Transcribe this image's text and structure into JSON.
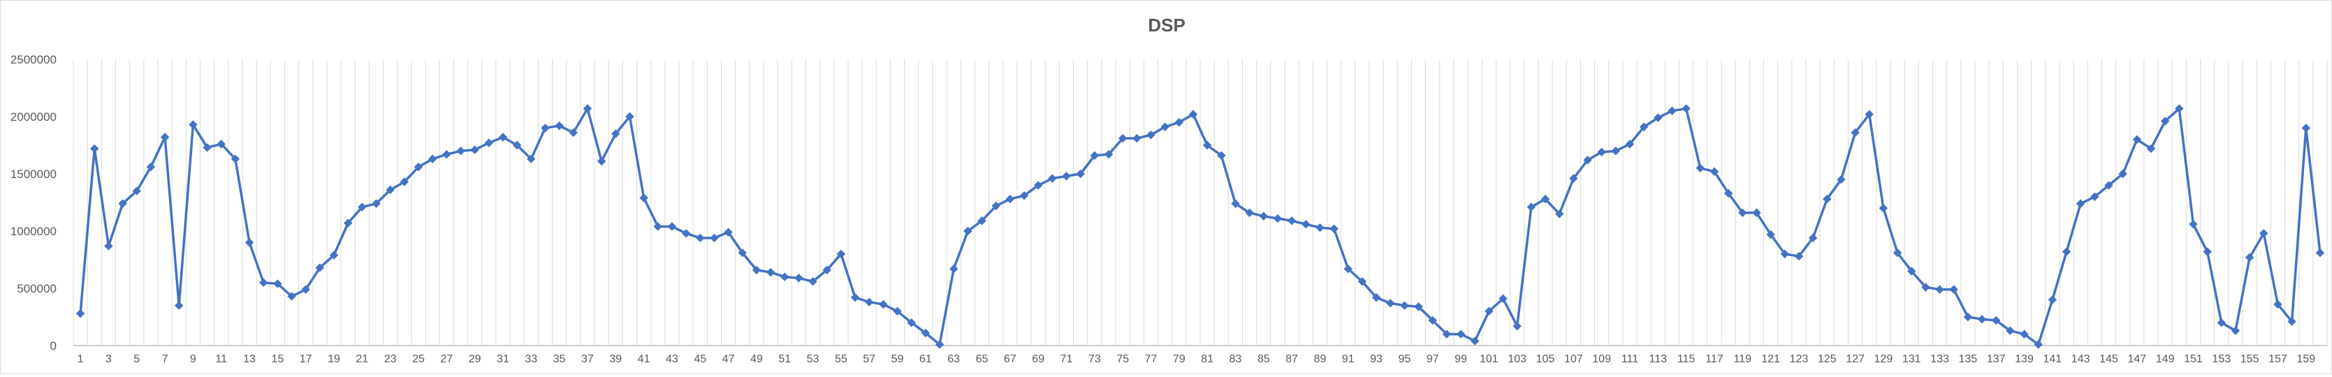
{
  "chart_data": {
    "type": "line",
    "title": "DSP",
    "xlabel": "",
    "ylabel": "",
    "ylim": [
      0,
      2500000
    ],
    "yticks": [
      0,
      500000,
      1000000,
      1500000,
      2000000,
      2500000
    ],
    "ytick_labels": [
      "0",
      "500000",
      "1000000",
      "1500000",
      "2000000",
      "2500000"
    ],
    "grid": "vertical",
    "legend": "none",
    "series_color": "#4472C4",
    "x_label_every": 2,
    "x": [
      1,
      2,
      3,
      4,
      5,
      6,
      7,
      8,
      9,
      10,
      11,
      12,
      13,
      14,
      15,
      16,
      17,
      18,
      19,
      20,
      21,
      22,
      23,
      24,
      25,
      26,
      27,
      28,
      29,
      30,
      31,
      32,
      33,
      34,
      35,
      36,
      37,
      38,
      39,
      40,
      41,
      42,
      43,
      44,
      45,
      46,
      47,
      48,
      49,
      50,
      51,
      52,
      53,
      54,
      55,
      56,
      57,
      58,
      59,
      60,
      61,
      62,
      63,
      64,
      65,
      66,
      67,
      68,
      69,
      70,
      71,
      72,
      73,
      74,
      75,
      76,
      77,
      78,
      79,
      80,
      81,
      82,
      83,
      84,
      85,
      86,
      87,
      88,
      89,
      90,
      91,
      92,
      93,
      94,
      95,
      96,
      97,
      98,
      99,
      100,
      101,
      102,
      103,
      104,
      105,
      106,
      107,
      108,
      109,
      110,
      111,
      112,
      113,
      114,
      115,
      116,
      117,
      118,
      119,
      120,
      121,
      122,
      123,
      124,
      125,
      126,
      127,
      128,
      129,
      130,
      131,
      132,
      133,
      134,
      135,
      136,
      137,
      138,
      139,
      140,
      141,
      142,
      143,
      144,
      145,
      146,
      147,
      148,
      149,
      150,
      151,
      152,
      153,
      154,
      155,
      156,
      157,
      158,
      159,
      160
    ],
    "values": [
      280000,
      1720000,
      870000,
      1240000,
      1350000,
      1560000,
      1820000,
      350000,
      1930000,
      1730000,
      1760000,
      1630000,
      900000,
      550000,
      540000,
      430000,
      490000,
      680000,
      790000,
      1070000,
      1210000,
      1240000,
      1360000,
      1430000,
      1560000,
      1630000,
      1670000,
      1700000,
      1710000,
      1770000,
      1820000,
      1750000,
      1630000,
      1900000,
      1920000,
      1860000,
      2070000,
      1610000,
      1850000,
      2000000,
      1290000,
      1040000,
      1040000,
      980000,
      940000,
      940000,
      990000,
      810000,
      660000,
      640000,
      600000,
      590000,
      560000,
      660000,
      800000,
      420000,
      380000,
      360000,
      300000,
      200000,
      110000,
      10000,
      670000,
      1000000,
      1090000,
      1220000,
      1280000,
      1310000,
      1400000,
      1460000,
      1480000,
      1500000,
      1660000,
      1670000,
      1810000,
      1810000,
      1840000,
      1910000,
      1950000,
      2020000,
      1750000,
      1660000,
      1240000,
      1160000,
      1130000,
      1110000,
      1090000,
      1060000,
      1030000,
      1020000,
      670000,
      560000,
      420000,
      370000,
      350000,
      340000,
      220000,
      100000,
      100000,
      40000,
      300000,
      410000,
      170000,
      1210000,
      1280000,
      1150000,
      1460000,
      1620000,
      1690000,
      1700000,
      1760000,
      1910000,
      1990000,
      2050000,
      2070000,
      1550000,
      1520000,
      1330000,
      1160000,
      1160000,
      970000,
      800000,
      780000,
      940000,
      1280000,
      1450000,
      1860000,
      2020000,
      1200000,
      810000,
      650000,
      510000,
      490000,
      490000,
      250000,
      230000,
      220000,
      130000,
      100000,
      10000,
      400000,
      820000,
      1240000,
      1300000,
      1400000,
      1500000,
      1800000,
      1720000,
      1960000,
      2070000,
      1060000,
      820000,
      200000,
      130000,
      770000,
      980000,
      360000,
      210000,
      1900000,
      810000
    ]
  }
}
